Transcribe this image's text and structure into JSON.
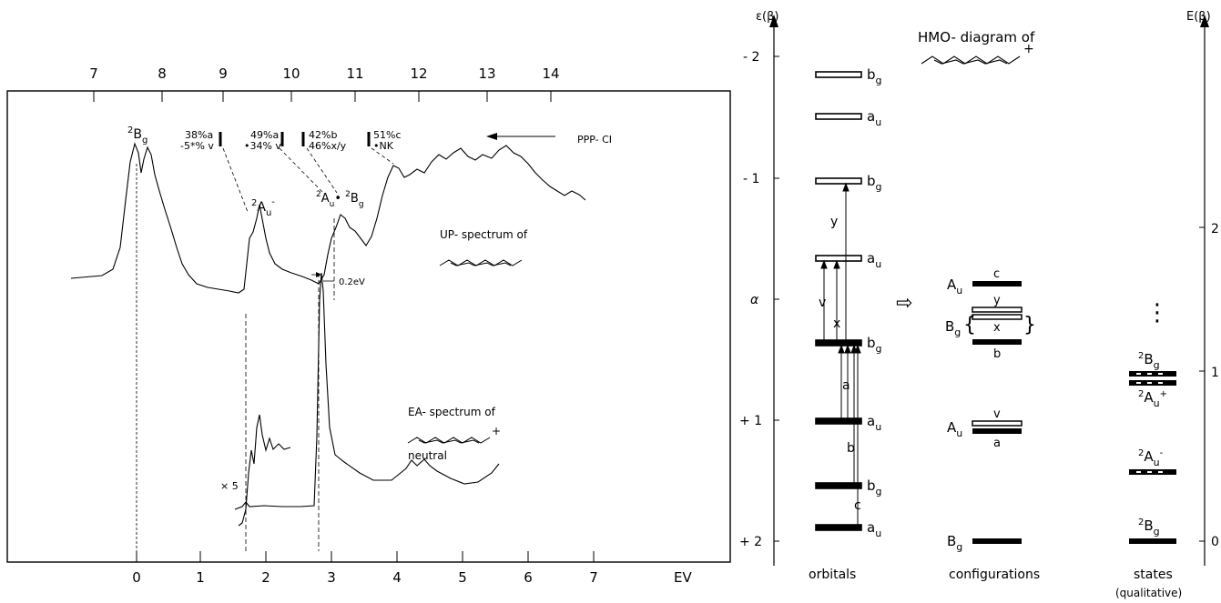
{
  "spectrum_panel": {
    "top_axis_ticks": [
      "7",
      "8",
      "9",
      "10",
      "11",
      "12",
      "13",
      "14"
    ],
    "bottom_axis_ticks": [
      "0",
      "1",
      "2",
      "3",
      "4",
      "5",
      "6",
      "7"
    ],
    "bottom_axis_unit": "EV",
    "peak_labels": {
      "bg2": {
        "sup": "2",
        "main": "B",
        "sub": "g"
      },
      "au_minus": {
        "sup": "2",
        "main": "A",
        "sub": "u",
        "supr": "-"
      },
      "au_bg": {
        "sup": "2",
        "main": "A",
        "sub": "u",
        "mid": "• ",
        "sup2": "2",
        "main2": "B",
        "sub2": "g"
      }
    },
    "ci_labels": [
      {
        "l1": "38%a",
        "l2": "-5*% v"
      },
      {
        "l1": "49%a",
        "l2": "•34% v"
      },
      {
        "l1": "42%b",
        "l2": "46%x/y"
      },
      {
        "l1": "51%c",
        "l2": "•NK"
      }
    ],
    "ppp_ci": "PPP- CI",
    "up_caption": "UP- spectrum of",
    "ea_caption": "EA- spectrum of",
    "ea_charge": "+",
    "neutral": "neutral",
    "scale_x5": "× 5",
    "shift_label": "0.2eV"
  },
  "hmo_panel": {
    "title": "HMO- diagram of",
    "title_charge": "+",
    "left_axis_label": "ε(β)",
    "right_axis_label": "E(β)",
    "left_ticks": [
      "- 2",
      "- 1",
      "α",
      "+ 1",
      "+ 2"
    ],
    "right_ticks": [
      "2",
      "1",
      "0"
    ],
    "orbitals": [
      {
        "label": "b",
        "sub": "g",
        "filled": false
      },
      {
        "label": "a",
        "sub": "u",
        "filled": false
      },
      {
        "label": "b",
        "sub": "g",
        "filled": false
      },
      {
        "label": "a",
        "sub": "u",
        "filled": false
      },
      {
        "label": "b",
        "sub": "g",
        "filled": true
      },
      {
        "label": "a",
        "sub": "u",
        "filled": true
      },
      {
        "label": "b",
        "sub": "g",
        "filled": true
      },
      {
        "label": "a",
        "sub": "u",
        "filled": true
      }
    ],
    "transitions": [
      "y",
      "v",
      "x",
      "a",
      "b",
      "c"
    ],
    "arrow_symbol": "⇨",
    "configurations": [
      {
        "sym": "A",
        "sub": "u",
        "label": "c"
      },
      {
        "sym": "",
        "sub": "",
        "label": "y"
      },
      {
        "sym": "B",
        "sub": "g",
        "label": "x"
      },
      {
        "sym": "",
        "sub": "",
        "label": "b"
      },
      {
        "sym": "",
        "sub": "",
        "label": "v"
      },
      {
        "sym": "A",
        "sub": "u",
        "label": "a"
      },
      {
        "sym": "B",
        "sub": "g",
        "label": ""
      }
    ],
    "states": [
      {
        "sup": "2",
        "main": "B",
        "sub": "g",
        "supr": ""
      },
      {
        "sup": "2",
        "main": "A",
        "sub": "u",
        "supr": "+"
      },
      {
        "sup": "2",
        "main": "A",
        "sub": "u",
        "supr": "-"
      },
      {
        "sup": "2",
        "main": "B",
        "sub": "g",
        "supr": ""
      }
    ],
    "dots": "⋮",
    "column_labels": [
      "orbitals",
      "configurations",
      "states"
    ],
    "states_sub": "(qualitative)"
  },
  "colors": {
    "ink": "#000000",
    "background": "#ffffff"
  }
}
